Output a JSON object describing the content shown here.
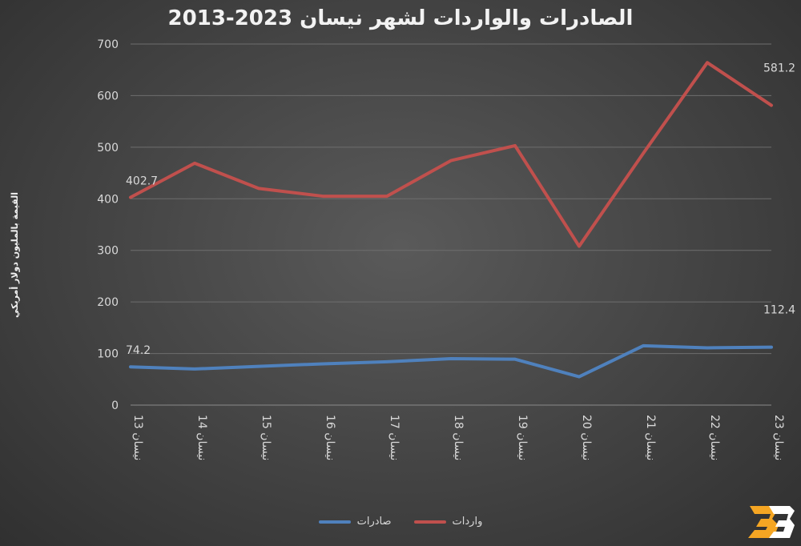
{
  "chart_data": {
    "type": "line",
    "title": "الصادرات والواردات لشهر نيسان 2023-2013",
    "ylabel": "القيمة بالمليون دولار أمريكي",
    "xlabel": "",
    "categories": [
      "نيسان 13",
      "نيسان 14",
      "نيسان 15",
      "نيسان 16",
      "نيسان 17",
      "نيسان 18",
      "نيسان 19",
      "نيسان 20",
      "نيسان 21",
      "نيسان 22",
      "نيسان 23"
    ],
    "yticks": [
      0,
      100,
      200,
      300,
      400,
      500,
      600,
      700
    ],
    "ylim": [
      0,
      700
    ],
    "grid": true,
    "legend_position": "bottom",
    "series": [
      {
        "name": "واردات",
        "color": "#c0504d",
        "values": [
          402.7,
          469,
          420,
          405,
          405,
          474,
          503,
          308,
          488,
          664,
          581.2
        ]
      },
      {
        "name": "صادرات",
        "color": "#4f81bd",
        "values": [
          74.2,
          70,
          75,
          80,
          84,
          90,
          89,
          55,
          115,
          111,
          112.4
        ]
      }
    ],
    "data_labels": [
      {
        "series": 0,
        "index": 0,
        "text": "402.7"
      },
      {
        "series": 0,
        "index": 10,
        "text": "581.2"
      },
      {
        "series": 1,
        "index": 0,
        "text": "74.2"
      },
      {
        "series": 1,
        "index": 10,
        "text": "112.4"
      }
    ]
  },
  "legend": {
    "imports_label": "واردات",
    "exports_label": "صادرات"
  },
  "logo": {
    "icon": "bb-logo-icon",
    "color_primary": "#f5a623",
    "color_secondary": "#ffffff"
  }
}
